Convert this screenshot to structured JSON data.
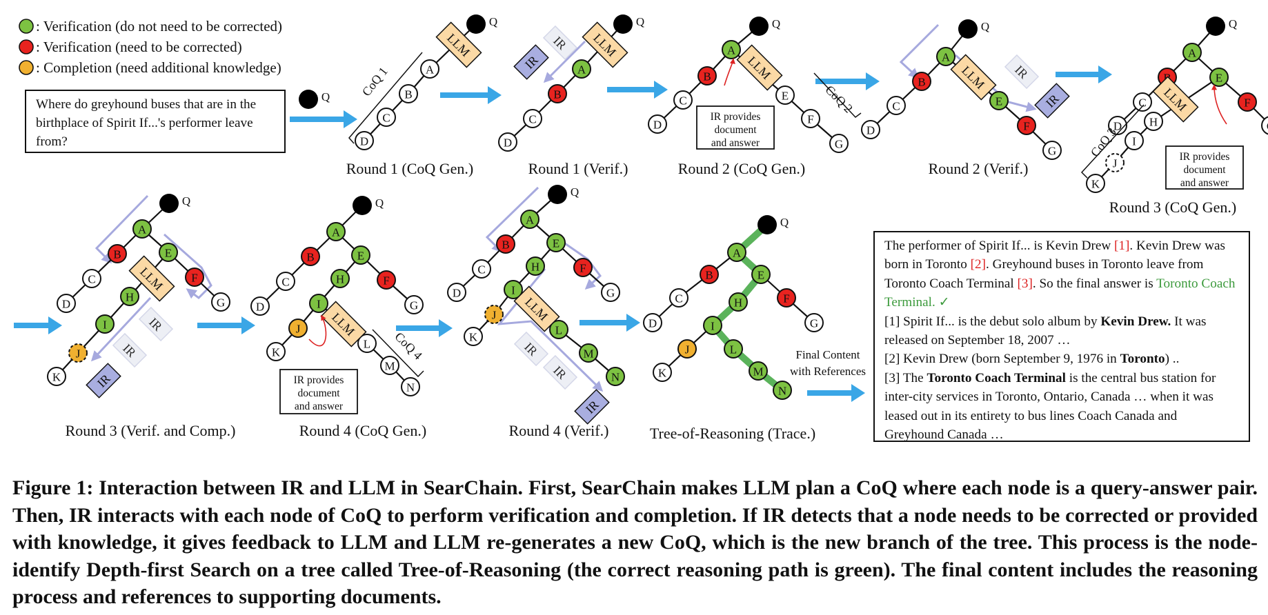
{
  "legend": [
    {
      "color": "#7dc242",
      "text": ": Verification (do not need to be corrected)"
    },
    {
      "color": "#e8231f",
      "text": ": Verification (need to be corrected)"
    },
    {
      "color": "#f0b030",
      "text": ": Completion (need additional knowledge)"
    }
  ],
  "question": "Where do greyhound buses that are in the birthplace of Spirit If...'s performer leave from?",
  "q_label": "Q",
  "llm_label": "LLM",
  "ir_label": "IR",
  "ir_note": [
    "IR provides",
    "document",
    "and answer"
  ],
  "coq_labels": [
    "CoQ 1",
    "CoQ 2",
    "CoQ 3",
    "CoQ 4"
  ],
  "panel_titles": [
    "Round 1 (CoQ Gen.)",
    "Round 1 (Verif.)",
    "Round 2 (CoQ Gen.)",
    "Round 2 (Verif.)",
    "Round 3 (CoQ Gen.)",
    "Round 3 (Verif. and Comp.)",
    "Round 4 (CoQ Gen.)",
    "Round 4 (Verif.)",
    "Tree-of-Reasoning (Trace.)"
  ],
  "final_content_label": [
    "Final Content",
    "with References"
  ],
  "answer": {
    "p1": "The performer of Spirit If... is Kevin Drew ",
    "r1": "[1]",
    "p2": ". Kevin Drew was born in Toronto ",
    "r2": "[2]",
    "p3": ". Greyhound buses in Toronto leave from Toronto Coach Terminal ",
    "r3": "[3]",
    "p4": ". So the final answer is ",
    "final": "Toronto Coach Terminal.",
    "check": "✓",
    "ref1a": "[1] Spirit If... is the debut solo album by ",
    "ref1b": "Kevin Drew.",
    "ref1c": " It was released on September 18, 2007 …",
    "ref2a": "[2] Kevin Drew (born September 9, 1976 in ",
    "ref2b": "Toronto",
    "ref2c": ") ..",
    "ref3a": "[3] The ",
    "ref3b": "Toronto Coach Terminal",
    "ref3c": " is the central bus station for inter-city services in Toronto, Ontario, Canada … when it was leased out in its entirety to bus lines Coach Canada and Greyhound Canada …"
  },
  "caption": "Figure 1: Interaction between IR and LLM in SearChain. First, SearChain makes LLM plan a CoQ where each node is a query-answer pair. Then, IR interacts with each node of CoQ to perform verification and completion. If IR detects that a node needs to be corrected or provided with knowledge, it gives feedback to LLM and LLM re-generates a new CoQ, which is the new branch of the tree. This process is the node-identify Depth-first Search on a tree called Tree-of-Reasoning (the correct reasoning path is green). The final content includes the reasoning process and references to supporting documents.",
  "colors": {
    "green": "#7dc242",
    "red": "#e8231f",
    "orange": "#f0b030",
    "arrow": "#3aa6e6",
    "llm": "#fbd9a5",
    "ir": "#a9aee0",
    "trace": "#5bb35b",
    "loop": "#a6a9de"
  }
}
